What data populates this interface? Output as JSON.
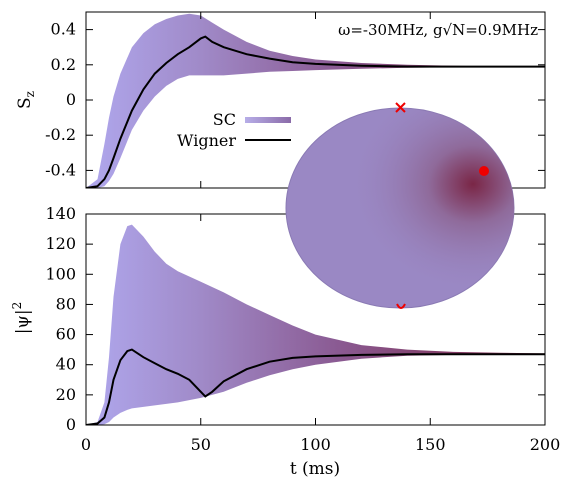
{
  "chart_data": [
    {
      "type": "area",
      "name": "sz-panel",
      "ylabel": "S",
      "ylabel_sub": "z",
      "xlim": [
        0,
        200
      ],
      "ylim": [
        -0.5,
        0.5
      ],
      "yticks": [
        0.4,
        0.2,
        0,
        -0.2,
        -0.4
      ],
      "ytick_labels": [
        "0.4",
        "0.2",
        "0",
        "-0.2",
        "-0.4"
      ],
      "annotation": "ω=-30MHz, g√N=0.9MHz",
      "legend": [
        {
          "label": "SC",
          "style": "gradient-band"
        },
        {
          "label": "Wigner",
          "style": "black-line"
        }
      ],
      "series": [
        {
          "name": "SC",
          "kind": "band",
          "x": [
            0,
            5,
            8,
            10,
            12,
            15,
            20,
            25,
            30,
            35,
            40,
            45,
            50,
            55,
            60,
            70,
            80,
            90,
            100,
            120,
            140,
            160,
            180,
            200
          ],
          "upper": [
            -0.5,
            -0.45,
            -0.25,
            -0.1,
            0.02,
            0.15,
            0.3,
            0.38,
            0.43,
            0.46,
            0.48,
            0.49,
            0.48,
            0.44,
            0.4,
            0.33,
            0.28,
            0.25,
            0.23,
            0.21,
            0.2,
            0.195,
            0.19,
            0.19
          ],
          "lower": [
            -0.5,
            -0.5,
            -0.49,
            -0.46,
            -0.42,
            -0.33,
            -0.17,
            -0.06,
            0.02,
            0.08,
            0.12,
            0.14,
            0.14,
            0.14,
            0.14,
            0.15,
            0.16,
            0.165,
            0.17,
            0.178,
            0.183,
            0.186,
            0.188,
            0.19
          ]
        },
        {
          "name": "Wigner",
          "kind": "line",
          "x": [
            0,
            5,
            8,
            10,
            12,
            15,
            20,
            25,
            30,
            35,
            40,
            45,
            50,
            52,
            55,
            60,
            70,
            80,
            90,
            100,
            120,
            140,
            160,
            180,
            200
          ],
          "y": [
            -0.5,
            -0.49,
            -0.45,
            -0.4,
            -0.33,
            -0.22,
            -0.06,
            0.06,
            0.15,
            0.21,
            0.26,
            0.3,
            0.35,
            0.36,
            0.33,
            0.3,
            0.26,
            0.235,
            0.215,
            0.205,
            0.195,
            0.19,
            0.19,
            0.19,
            0.19
          ]
        }
      ]
    },
    {
      "type": "area",
      "name": "psi-panel",
      "ylabel": "|ψ|",
      "ylabel_sup": "2",
      "xlabel": "t (ms)",
      "xlim": [
        0,
        200
      ],
      "ylim": [
        0,
        140
      ],
      "xticks": [
        0,
        50,
        100,
        150,
        200
      ],
      "xtick_labels": [
        "0",
        "50",
        "100",
        "150",
        "200"
      ],
      "yticks": [
        0,
        20,
        40,
        60,
        80,
        100,
        120,
        140
      ],
      "ytick_labels": [
        "0",
        "20",
        "40",
        "60",
        "80",
        "100",
        "120",
        "140"
      ],
      "series": [
        {
          "name": "SC",
          "kind": "band",
          "x": [
            0,
            5,
            8,
            10,
            12,
            15,
            18,
            20,
            25,
            30,
            35,
            40,
            50,
            60,
            70,
            80,
            90,
            100,
            120,
            140,
            160,
            180,
            200
          ],
          "upper": [
            0,
            2,
            15,
            45,
            85,
            120,
            132,
            133,
            125,
            115,
            107,
            102,
            95,
            88,
            80,
            73,
            66,
            60,
            53,
            50,
            48.5,
            48,
            47.5
          ],
          "lower": [
            0,
            0,
            0.5,
            2,
            5,
            8,
            10,
            11,
            12,
            13,
            14,
            15,
            18,
            22,
            28,
            33,
            37,
            40,
            44,
            46,
            46.5,
            47,
            47
          ]
        },
        {
          "name": "Wigner",
          "kind": "line",
          "x": [
            0,
            5,
            8,
            10,
            12,
            15,
            18,
            20,
            25,
            30,
            35,
            40,
            45,
            50,
            52,
            55,
            60,
            70,
            80,
            90,
            100,
            120,
            140,
            160,
            180,
            200
          ],
          "y": [
            0,
            1,
            5,
            15,
            30,
            43,
            49,
            50,
            45,
            41,
            37,
            34,
            30,
            22,
            19,
            22,
            29,
            37,
            42,
            44.5,
            45.5,
            46.5,
            47,
            47,
            47,
            47
          ]
        }
      ]
    }
  ],
  "inset": {
    "kind": "bloch-sphere",
    "color": "#9a88c4",
    "highlight": "#7a2646",
    "marker_color": "#ee0000"
  }
}
